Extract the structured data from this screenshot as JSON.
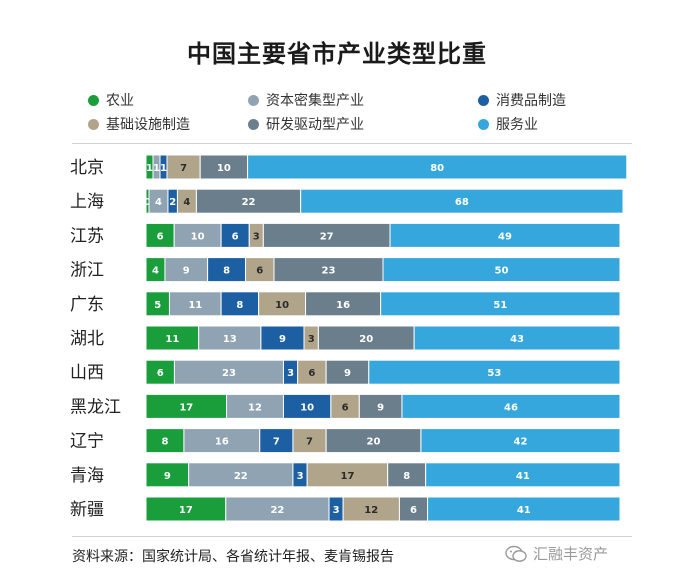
{
  "chart_data": {
    "type": "bar",
    "orientation": "horizontal",
    "stacked": true,
    "title": "中国主要省市产业类型比重",
    "categories": [
      "北京",
      "上海",
      "江苏",
      "浙江",
      "广东",
      "湖北",
      "山西",
      "黑龙江",
      "辽宁",
      "青海",
      "新疆"
    ],
    "series": [
      {
        "name": "农业",
        "color": "#1a9e3c",
        "values": [
          1,
          0,
          6,
          4,
          5,
          11,
          6,
          17,
          8,
          9,
          17
        ]
      },
      {
        "name": "资本密集型产业",
        "color": "#8fa3b2",
        "values": [
          1,
          4,
          10,
          9,
          11,
          13,
          23,
          12,
          16,
          22,
          22
        ]
      },
      {
        "name": "消费品制造",
        "color": "#1d5fa3",
        "values": [
          1,
          2,
          6,
          8,
          8,
          9,
          3,
          10,
          7,
          3,
          3
        ]
      },
      {
        "name": "基础设施制造",
        "color": "#b0a58a",
        "values": [
          7,
          4,
          3,
          6,
          10,
          3,
          6,
          6,
          7,
          17,
          12
        ]
      },
      {
        "name": "研发驱动型产业",
        "color": "#6b7e8b",
        "values": [
          10,
          22,
          27,
          23,
          16,
          20,
          9,
          9,
          20,
          8,
          6
        ]
      },
      {
        "name": "服务业",
        "color": "#35a7dc",
        "values": [
          80,
          68,
          49,
          50,
          51,
          43,
          53,
          46,
          42,
          41,
          41
        ]
      }
    ],
    "legend_position": "top",
    "grid": false
  },
  "source_text": "资料来源：国家统计局、各省统计年报、麦肯锡报告",
  "watermark_text": "汇融丰资产"
}
